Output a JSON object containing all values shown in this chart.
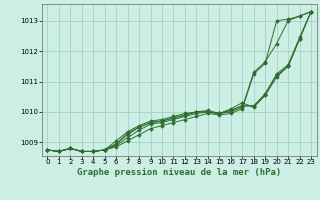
{
  "background_color": "#cceee4",
  "plot_bg_color": "#cceee4",
  "grid_color": "#99ccbb",
  "line_color": "#2d6e2d",
  "xlabel": "Graphe pression niveau de la mer (hPa)",
  "xlabel_fontsize": 6.5,
  "ylabel_fontsize": 5.5,
  "tick_fontsize": 5.0,
  "ylim": [
    1008.55,
    1013.55
  ],
  "xlim": [
    -0.5,
    23.5
  ],
  "yticks": [
    1009,
    1010,
    1011,
    1012,
    1013
  ],
  "xticks": [
    0,
    1,
    2,
    3,
    4,
    5,
    6,
    7,
    8,
    9,
    10,
    11,
    12,
    13,
    14,
    15,
    16,
    17,
    18,
    19,
    20,
    21,
    22,
    23
  ],
  "series": [
    [
      1008.75,
      1008.7,
      1008.8,
      1008.7,
      1008.7,
      1008.75,
      1008.85,
      1009.05,
      1009.25,
      1009.45,
      1009.55,
      1009.65,
      1009.75,
      1009.85,
      1009.95,
      1009.9,
      1009.95,
      1010.1,
      1011.25,
      1011.6,
      1013.0,
      1013.05,
      1013.15,
      1013.3
    ],
    [
      1008.75,
      1008.7,
      1008.8,
      1008.7,
      1008.7,
      1008.75,
      1008.9,
      1009.15,
      1009.4,
      1009.6,
      1009.65,
      1009.75,
      1009.85,
      1009.95,
      1010.0,
      1009.95,
      1010.0,
      1010.15,
      1011.3,
      1011.65,
      1012.25,
      1013.0,
      1013.15,
      1013.3
    ],
    [
      1008.75,
      1008.7,
      1008.8,
      1008.7,
      1008.7,
      1008.75,
      1008.95,
      1009.25,
      1009.5,
      1009.65,
      1009.7,
      1009.8,
      1009.9,
      1010.0,
      1010.0,
      1009.95,
      1010.05,
      1010.2,
      1010.2,
      1010.55,
      1011.2,
      1011.5,
      1012.4,
      1013.3
    ],
    [
      1008.75,
      1008.7,
      1008.8,
      1008.7,
      1008.7,
      1008.75,
      1008.95,
      1009.3,
      1009.5,
      1009.65,
      1009.7,
      1009.8,
      1009.9,
      1010.0,
      1010.0,
      1009.95,
      1010.05,
      1010.2,
      1010.2,
      1010.6,
      1011.25,
      1011.55,
      1012.45,
      1013.3
    ],
    [
      1008.75,
      1008.7,
      1008.8,
      1008.7,
      1008.7,
      1008.75,
      1009.05,
      1009.35,
      1009.55,
      1009.7,
      1009.75,
      1009.85,
      1009.95,
      1010.0,
      1010.05,
      1009.95,
      1010.1,
      1010.3,
      1010.15,
      1010.55,
      1011.15,
      1011.5,
      1012.4,
      1013.3
    ]
  ]
}
